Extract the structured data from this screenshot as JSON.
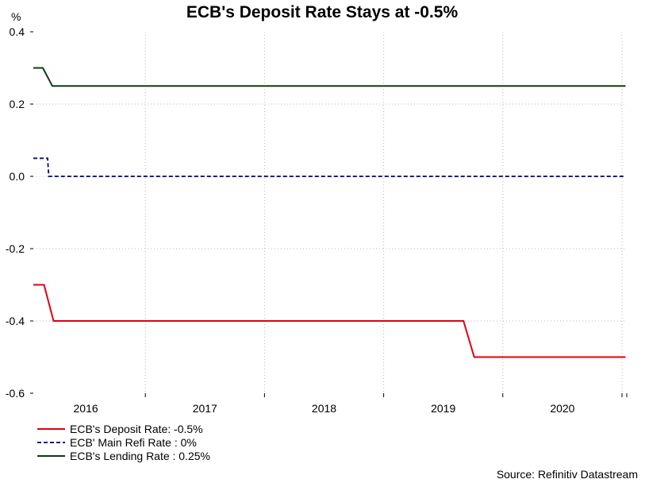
{
  "chart_data": {
    "type": "line",
    "title": "ECB's Deposit Rate Stays at -0.5%",
    "ylabel": "%",
    "xlabel": "",
    "ylim": [
      -0.6,
      0.4
    ],
    "yticks": [
      {
        "value": 0.4,
        "label": "0.4"
      },
      {
        "value": 0.2,
        "label": "0.2"
      },
      {
        "value": 0.0,
        "label": "0.0"
      },
      {
        "value": -0.2,
        "label": "-0.2"
      },
      {
        "value": -0.4,
        "label": "-0.4"
      },
      {
        "value": -0.6,
        "label": "-0.6"
      }
    ],
    "xlim": [
      2015.56,
      2020.54
    ],
    "xgrid": [
      2015.5,
      2016.5,
      2017.5,
      2018.5,
      2019.5,
      2020.5
    ],
    "xticks": [
      {
        "value": 2016,
        "label": "2016"
      },
      {
        "value": 2017,
        "label": "2017"
      },
      {
        "value": 2018,
        "label": "2018"
      },
      {
        "value": 2019,
        "label": "2019"
      },
      {
        "value": 2020,
        "label": "2020"
      }
    ],
    "grid": true,
    "legend_position": "bottom-left",
    "series": [
      {
        "name": "ECB's Deposit Rate: -0.5%",
        "color": "#e3000f",
        "dash": "solid",
        "points": [
          [
            2015.56,
            -0.3
          ],
          [
            2015.65,
            -0.3
          ],
          [
            2015.73,
            -0.4
          ],
          [
            2019.17,
            -0.4
          ],
          [
            2019.26,
            -0.5
          ],
          [
            2020.53,
            -0.5
          ]
        ]
      },
      {
        "name": "ECB' Main Refi Rate : 0%",
        "color": "#1a1a8c",
        "dash": "dashed",
        "points": [
          [
            2015.56,
            0.05
          ],
          [
            2015.68,
            0.05
          ],
          [
            2015.69,
            0.0
          ],
          [
            2020.53,
            0.0
          ]
        ]
      },
      {
        "name": "ECB's Lending Rate : 0.25%",
        "color": "#0d3b12",
        "dash": "solid",
        "points": [
          [
            2015.56,
            0.3
          ],
          [
            2015.64,
            0.3
          ],
          [
            2015.72,
            0.25
          ],
          [
            2020.53,
            0.25
          ]
        ]
      }
    ],
    "source": "Source: Refinitiv Datastream"
  }
}
